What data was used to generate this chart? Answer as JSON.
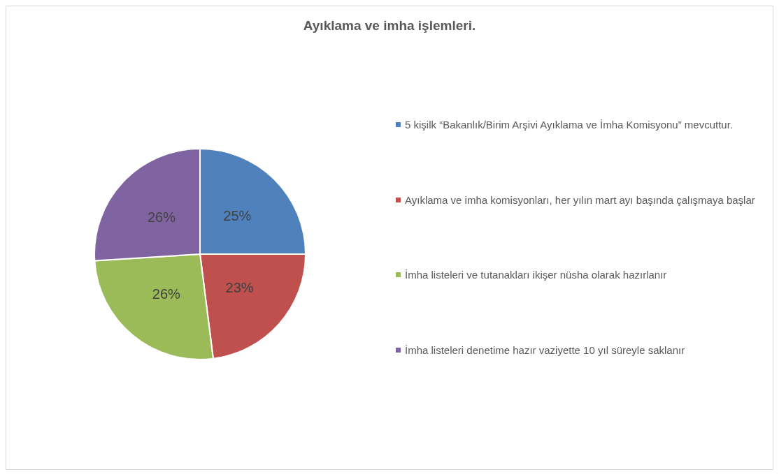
{
  "chart_data": {
    "type": "pie",
    "title": "Ayıklama ve imha işlemleri.",
    "categories": [
      "5 kişilk “Bakanlık/Birim Arşivi Ayıklama ve İmha Komisyonu” mevcuttur.",
      "Ayıklama ve imha komisyonları, her yılın mart ayı başında çalışmaya başlar",
      "İmha listeleri ve tutanakları ikişer nüsha olarak hazırlanır",
      "İmha listeleri denetime hazır vaziyette 10 yıl süreyle saklanır"
    ],
    "values": [
      25,
      23,
      26,
      26
    ],
    "colors": [
      "#4f81bd",
      "#c0504d",
      "#9bbb59",
      "#8064a2"
    ],
    "value_labels": [
      "25%",
      "23%",
      "26%",
      "26%"
    ],
    "legend": "right"
  }
}
